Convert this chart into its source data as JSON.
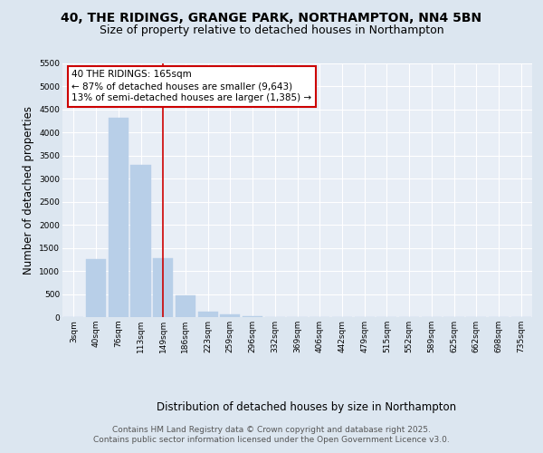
{
  "title1": "40, THE RIDINGS, GRANGE PARK, NORTHAMPTON, NN4 5BN",
  "title2": "Size of property relative to detached houses in Northampton",
  "xlabel": "Distribution of detached houses by size in Northampton",
  "ylabel": "Number of detached properties",
  "bar_labels": [
    "3sqm",
    "40sqm",
    "76sqm",
    "113sqm",
    "149sqm",
    "186sqm",
    "223sqm",
    "259sqm",
    "296sqm",
    "332sqm",
    "369sqm",
    "406sqm",
    "442sqm",
    "479sqm",
    "515sqm",
    "552sqm",
    "589sqm",
    "625sqm",
    "662sqm",
    "698sqm",
    "735sqm"
  ],
  "bar_values": [
    0,
    1260,
    4330,
    3300,
    1280,
    480,
    110,
    50,
    10,
    5,
    2,
    1,
    0,
    0,
    0,
    0,
    0,
    0,
    0,
    0,
    0
  ],
  "bar_color": "#b8cfe8",
  "bar_edgecolor": "#b8cfe8",
  "vline_x": 4,
  "vline_color": "#cc0000",
  "ylim": [
    0,
    5500
  ],
  "yticks": [
    0,
    500,
    1000,
    1500,
    2000,
    2500,
    3000,
    3500,
    4000,
    4500,
    5000,
    5500
  ],
  "annotation_text": "40 THE RIDINGS: 165sqm\n← 87% of detached houses are smaller (9,643)\n13% of semi-detached houses are larger (1,385) →",
  "annotation_box_color": "#cc0000",
  "bg_color": "#dce6f0",
  "plot_bg_color": "#e8eef6",
  "footer1": "Contains HM Land Registry data © Crown copyright and database right 2025.",
  "footer2": "Contains public sector information licensed under the Open Government Licence v3.0.",
  "grid_color": "#ffffff",
  "title_fontsize": 10,
  "subtitle_fontsize": 9,
  "axis_label_fontsize": 8.5,
  "tick_fontsize": 6.5,
  "annotation_fontsize": 7.5,
  "footer_fontsize": 6.5
}
